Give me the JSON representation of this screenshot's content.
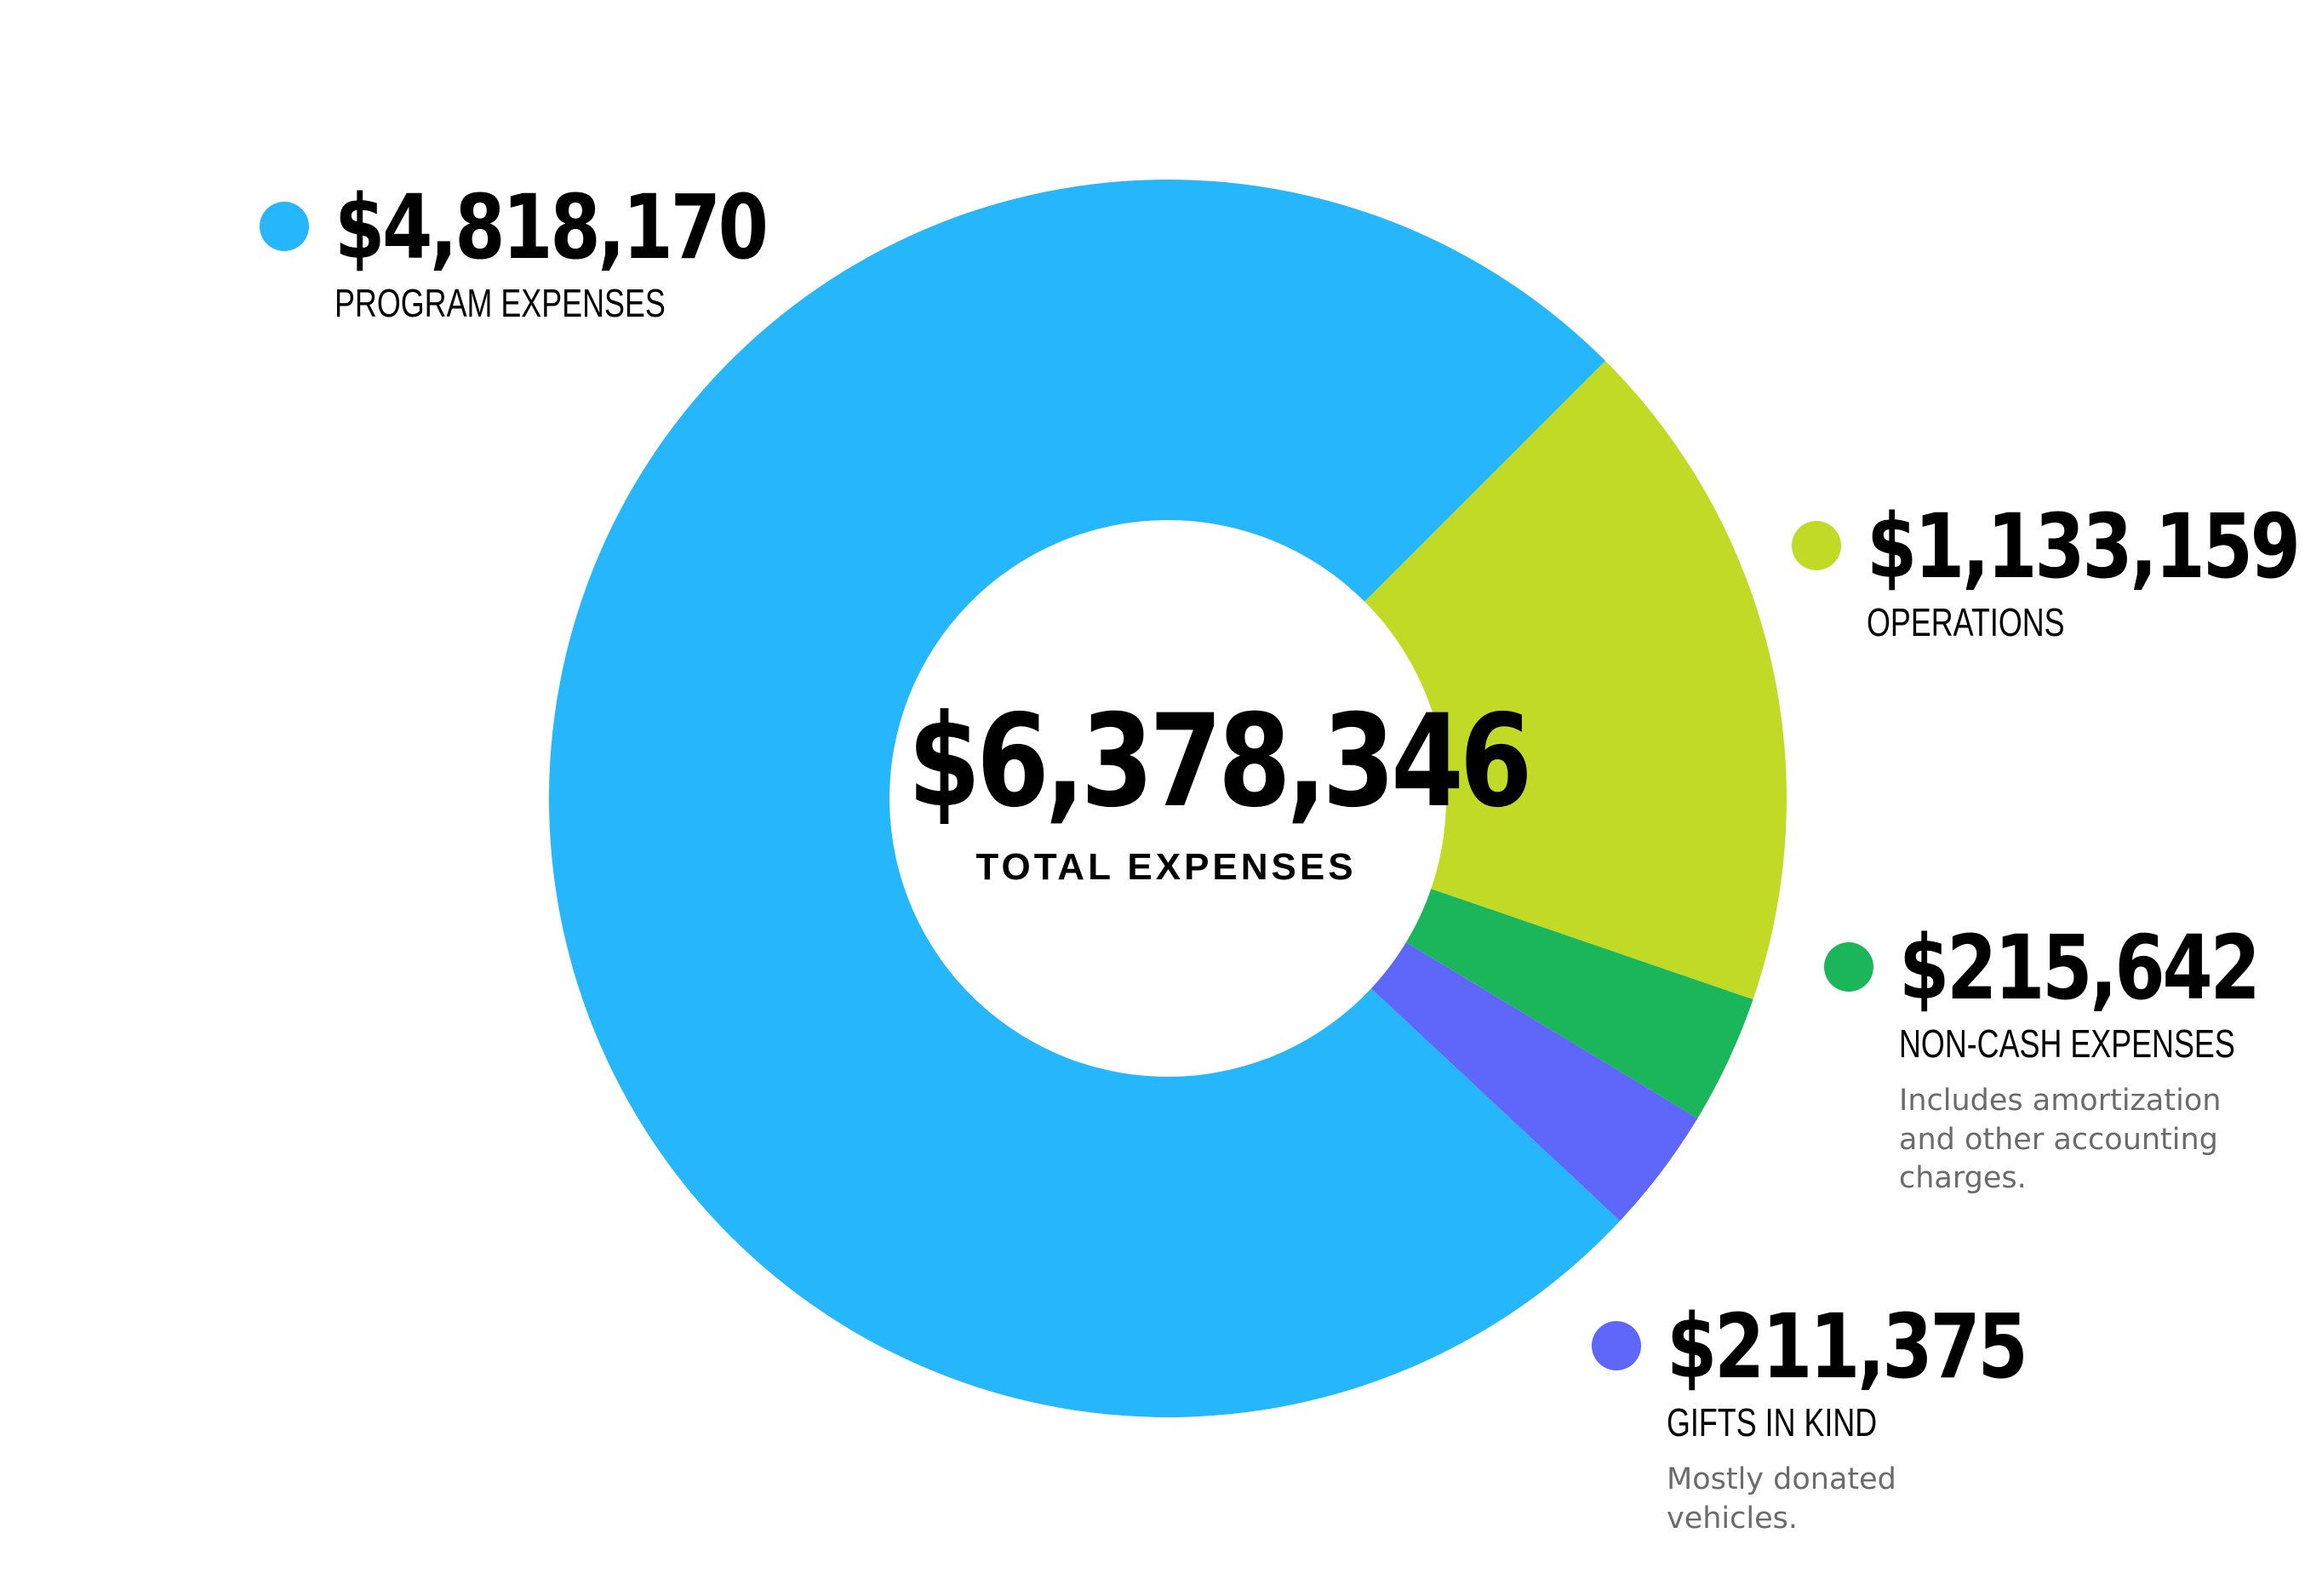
{
  "chart_data": {
    "type": "pie",
    "style": "donut",
    "total": 6378346,
    "total_label": "$6,378,346",
    "total_caption": "TOTAL EXPENSES",
    "slices": [
      {
        "id": "program",
        "value": 4818170,
        "amount_label": "$4,818,170",
        "label": "PROGRAM EXPENSES",
        "note": "",
        "color": "#26B6FB"
      },
      {
        "id": "operations",
        "value": 1133159,
        "amount_label": "$1,133,159",
        "label": "OPERATIONS",
        "note": "",
        "color": "#C0DA25"
      },
      {
        "id": "noncash",
        "value": 215642,
        "amount_label": "$215,642",
        "label": "NON-CASH EXPENSES",
        "note": "Includes amortization and other accounting charges.",
        "color": "#1BB65A"
      },
      {
        "id": "gifts",
        "value": 211375,
        "amount_label": "$211,375",
        "label": "GIFTS IN KIND",
        "note": "Mostly donated vehicles.",
        "color": "#5F67FA"
      }
    ]
  }
}
